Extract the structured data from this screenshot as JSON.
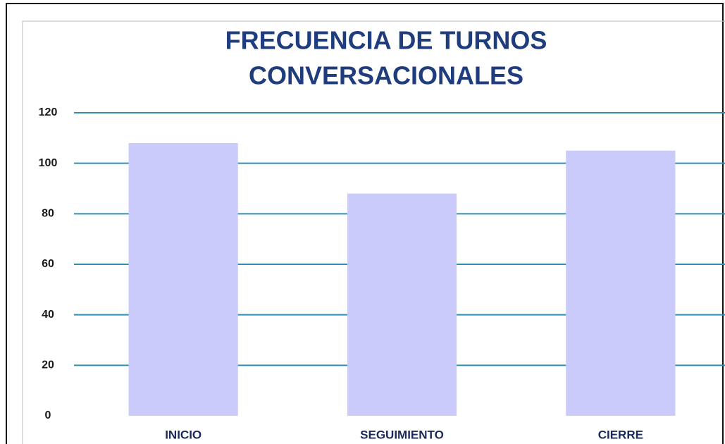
{
  "chart_data": {
    "type": "bar",
    "title": [
      "FRECUENCIA DE TURNOS",
      "CONVERSACIONALES"
    ],
    "categories": [
      "INICIO",
      "SEGUIMIENTO",
      "CIERRE"
    ],
    "values": [
      108,
      88,
      105
    ],
    "color": "#cbcbfb",
    "ylim": [
      0,
      120
    ],
    "yticks": [
      0,
      20,
      40,
      60,
      80,
      100,
      120
    ],
    "grid": true
  }
}
